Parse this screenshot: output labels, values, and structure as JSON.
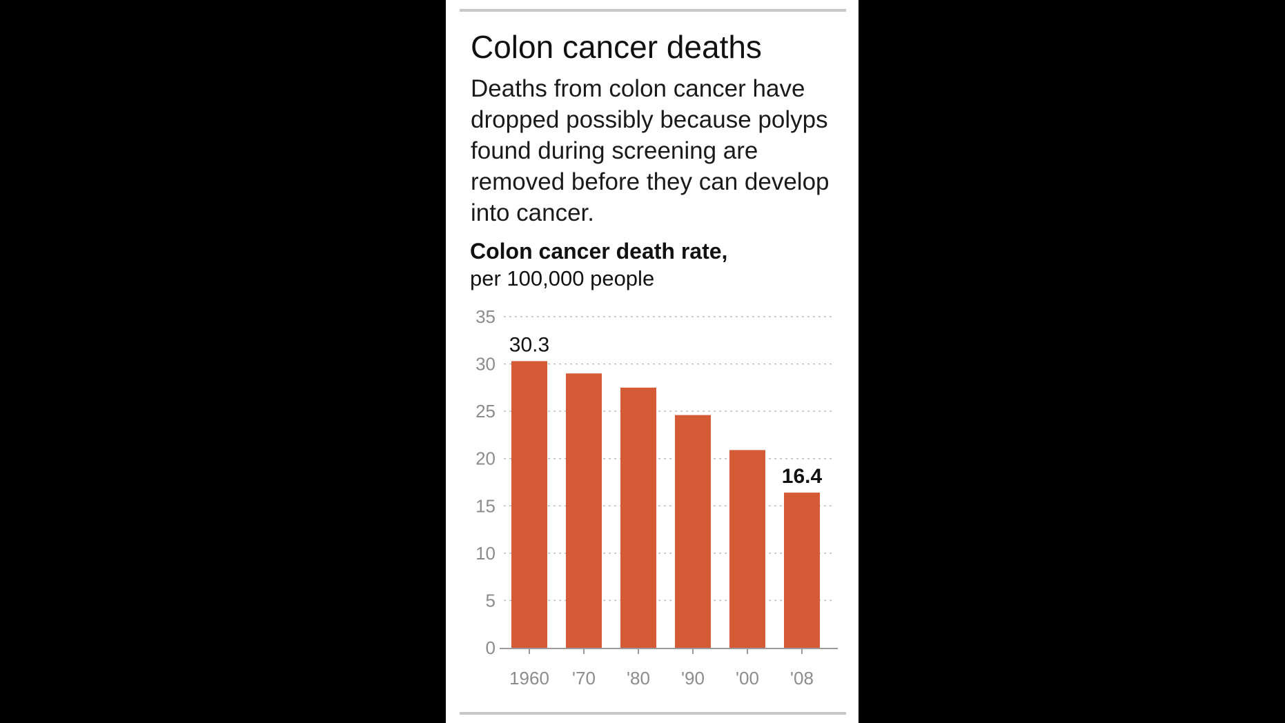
{
  "chart_data": {
    "type": "bar",
    "title": "Colon cancer deaths",
    "description": "Deaths from colon cancer have dropped possibly because polyps found during screening are removed before they can develop into cancer.",
    "chart_title": "Colon cancer death rate,",
    "chart_subtitle": "per 100,000 people",
    "categories": [
      "1960",
      "'70",
      "'80",
      "'90",
      "'00",
      "'08"
    ],
    "values": [
      30.3,
      29.0,
      27.5,
      24.6,
      20.9,
      16.4
    ],
    "data_labels": [
      {
        "index": 0,
        "text": "30.3",
        "bold": false
      },
      {
        "index": 5,
        "text": "16.4",
        "bold": true
      }
    ],
    "ylim": [
      0,
      35
    ],
    "yticks": [
      0,
      5,
      10,
      15,
      20,
      25,
      30,
      35
    ],
    "xlabel": "",
    "ylabel": "",
    "grid": "dotted horizontal",
    "colors": {
      "bar": "#d55a36",
      "grid": "#bdbdbd",
      "axis": "#9a9a9a",
      "ticks": "#8c8c8c"
    }
  }
}
